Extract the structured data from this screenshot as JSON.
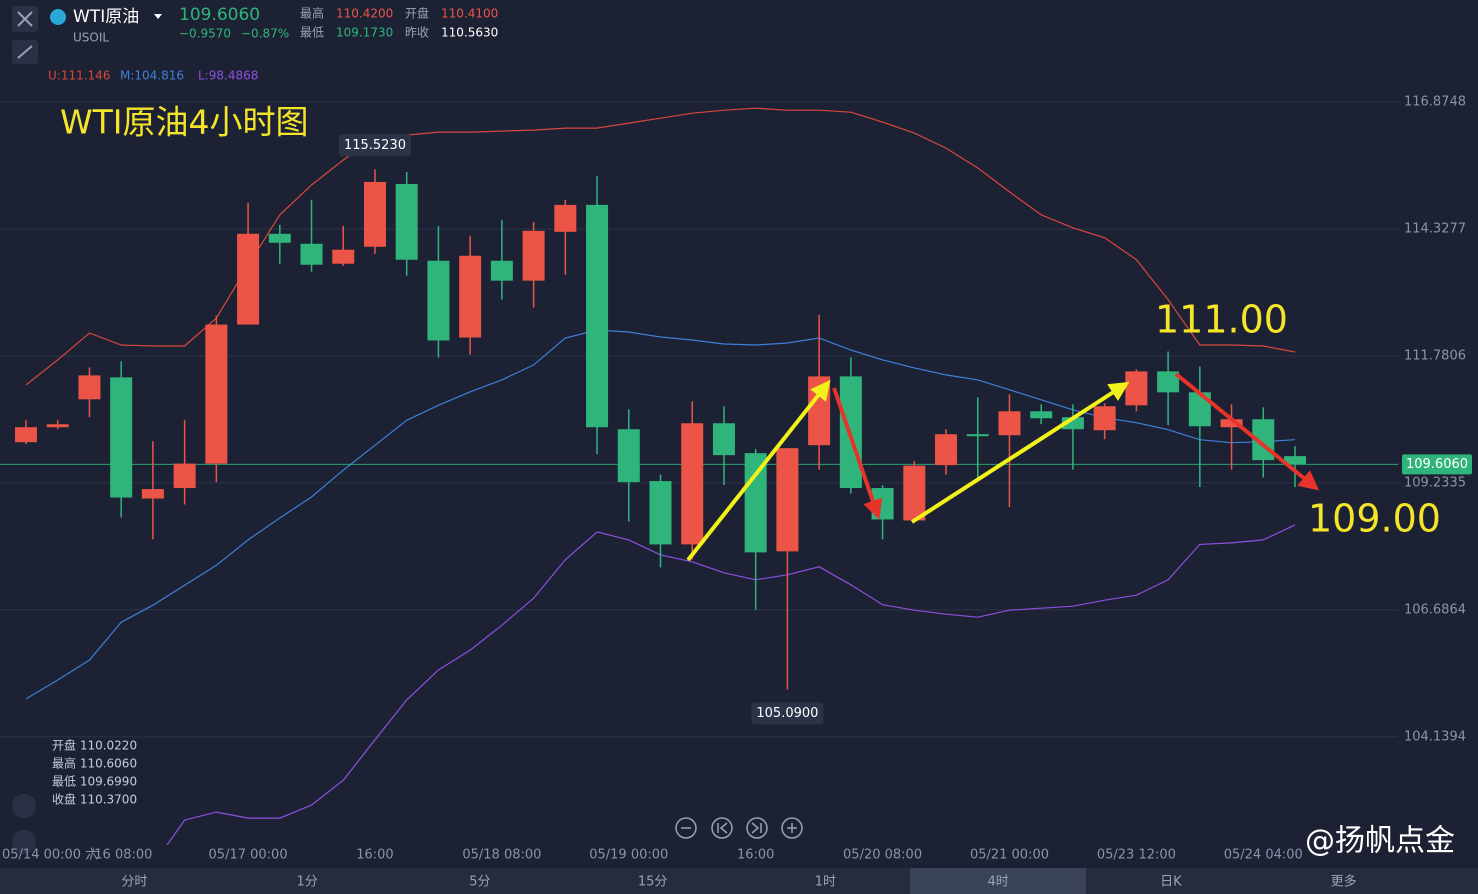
{
  "header": {
    "name": "WTI原油",
    "symbol": "USOIL",
    "price": "109.6060",
    "change": "−0.9570",
    "change_pct": "−0.87%",
    "stats": [
      {
        "label": "最高",
        "value": "110.4200"
      },
      {
        "label": "开盘",
        "value": "110.4100"
      },
      {
        "label": "最低",
        "value": "109.1730"
      },
      {
        "label": "昨收",
        "value": "110.5630"
      }
    ]
  },
  "ohlc_info": [
    "开盘 110.0220",
    "最高 110.6060",
    "最低 109.6990",
    "收盘 110.3700"
  ],
  "toolbar": {
    "items": [
      "分时",
      "1分",
      "5分",
      "15分",
      "1时",
      "4时",
      "日K",
      "更多"
    ],
    "selected": "4时"
  },
  "watermark": "@扬帆点金",
  "chart_data": {
    "type": "candlestick",
    "title": "WTI原油4小时图",
    "categories": [
      null,
      "05/14 00:00 六",
      null,
      "/16 08:00",
      null,
      null,
      null,
      "05/17 00:00",
      null,
      null,
      null,
      "16:00",
      null,
      null,
      null,
      "05/18 08:00",
      null,
      null,
      null,
      "05/19 00:00",
      null,
      null,
      null,
      "16:00",
      null,
      null,
      null,
      "05/20 08:00",
      null,
      null,
      null,
      "05/21 00:00",
      null,
      null,
      null,
      "05/23 12:00",
      null,
      null,
      null,
      "05/24 04:00",
      null
    ],
    "open": [
      110.05,
      110.35,
      110.91,
      111.35,
      108.92,
      109.13,
      109.62,
      112.41,
      114.23,
      114.03,
      113.63,
      113.97,
      115.23,
      113.69,
      112.15,
      113.69,
      113.29,
      114.27,
      114.81,
      110.31,
      109.27,
      108.0,
      110.43,
      109.83,
      107.86,
      109.99,
      111.37,
      109.13,
      108.48,
      109.59,
      110.21,
      110.19,
      110.67,
      110.55,
      110.29,
      110.79,
      111.47,
      111.05,
      110.35,
      110.51,
      109.77
    ],
    "close": [
      110.35,
      110.41,
      111.39,
      108.94,
      109.11,
      109.62,
      112.41,
      114.23,
      114.05,
      113.61,
      113.91,
      115.27,
      113.71,
      112.09,
      113.79,
      113.29,
      114.29,
      114.81,
      110.35,
      109.25,
      108.0,
      110.43,
      109.79,
      107.84,
      109.93,
      111.37,
      109.13,
      108.5,
      109.58,
      110.21,
      110.17,
      110.67,
      110.53,
      110.31,
      110.77,
      111.47,
      111.05,
      110.37,
      110.51,
      109.69,
      109.606
    ],
    "high": [
      110.49,
      110.49,
      111.55,
      111.67,
      110.07,
      110.49,
      112.59,
      114.85,
      114.41,
      114.91,
      114.39,
      115.523,
      115.47,
      114.39,
      114.19,
      114.51,
      114.47,
      114.91,
      115.39,
      110.71,
      109.4,
      110.87,
      110.77,
      109.91,
      109.93,
      112.61,
      111.75,
      109.19,
      109.67,
      110.31,
      110.95,
      111.01,
      110.81,
      110.81,
      110.83,
      111.51,
      111.87,
      111.57,
      110.81,
      110.75,
      109.97
    ],
    "low": [
      110.01,
      110.31,
      110.55,
      108.54,
      108.1,
      108.8,
      109.25,
      112.41,
      113.63,
      113.47,
      113.59,
      113.83,
      113.39,
      111.75,
      111.81,
      112.91,
      112.75,
      113.41,
      109.81,
      108.46,
      107.54,
      107.7,
      109.19,
      106.69,
      105.09,
      109.5,
      109.02,
      108.1,
      108.44,
      109.4,
      109.34,
      108.75,
      110.41,
      109.5,
      110.11,
      110.67,
      110.39,
      109.15,
      109.5,
      109.34,
      109.15
    ],
    "up_color": "#ec5447",
    "down_color": "#2fb57c",
    "bands": [
      {
        "label": "U:111.146",
        "color": "#d9473c",
        "values": [
          111.2,
          111.7,
          112.24,
          112.0,
          111.98,
          111.98,
          112.54,
          113.6,
          114.61,
          115.21,
          115.71,
          116.17,
          116.21,
          116.27,
          116.27,
          116.29,
          116.31,
          116.35,
          116.35,
          116.45,
          116.55,
          116.65,
          116.71,
          116.75,
          116.71,
          116.71,
          116.67,
          116.47,
          116.25,
          115.95,
          115.55,
          115.07,
          114.61,
          114.35,
          114.15,
          113.71,
          112.91,
          112.0,
          112.0,
          111.98,
          111.86
        ]
      },
      {
        "label": "M:104.816",
        "color": "#3f7fd9",
        "values": [
          104.9,
          105.28,
          105.68,
          106.44,
          106.78,
          107.18,
          107.58,
          108.09,
          108.53,
          108.95,
          109.49,
          109.99,
          110.49,
          110.79,
          111.06,
          111.3,
          111.6,
          112.14,
          112.3,
          112.26,
          112.16,
          112.1,
          112.02,
          112.0,
          112.04,
          112.14,
          111.9,
          111.7,
          111.54,
          111.4,
          111.3,
          111.1,
          110.9,
          110.7,
          110.54,
          110.44,
          110.3,
          110.1,
          110.04,
          110.06,
          110.1
        ]
      },
      {
        "label": "L:98.4868",
        "color": "#8e4fe0",
        "values": [
          null,
          null,
          null,
          null,
          101.57,
          102.47,
          102.63,
          102.51,
          102.51,
          102.77,
          103.27,
          104.08,
          104.88,
          105.48,
          105.88,
          106.38,
          106.92,
          107.69,
          108.25,
          108.09,
          107.79,
          107.65,
          107.43,
          107.29,
          107.39,
          107.55,
          107.19,
          106.79,
          106.68,
          106.6,
          106.54,
          106.68,
          106.72,
          106.76,
          106.88,
          106.98,
          107.29,
          108.0,
          108.03,
          108.09,
          108.39
        ]
      }
    ],
    "ylim": [
      101.97,
      118.92
    ],
    "yticks": [
      116.8748,
      114.3277,
      111.7806,
      109.2335,
      106.6864,
      104.1394
    ],
    "grid": true,
    "last_price": {
      "value": 109.606,
      "label": "109.6060"
    },
    "max_label": {
      "value": 115.523,
      "label": "115.5230"
    },
    "min_label": {
      "value": 105.09,
      "label": "105.0900"
    },
    "annotations": [
      "111.00",
      "109.00"
    ]
  }
}
